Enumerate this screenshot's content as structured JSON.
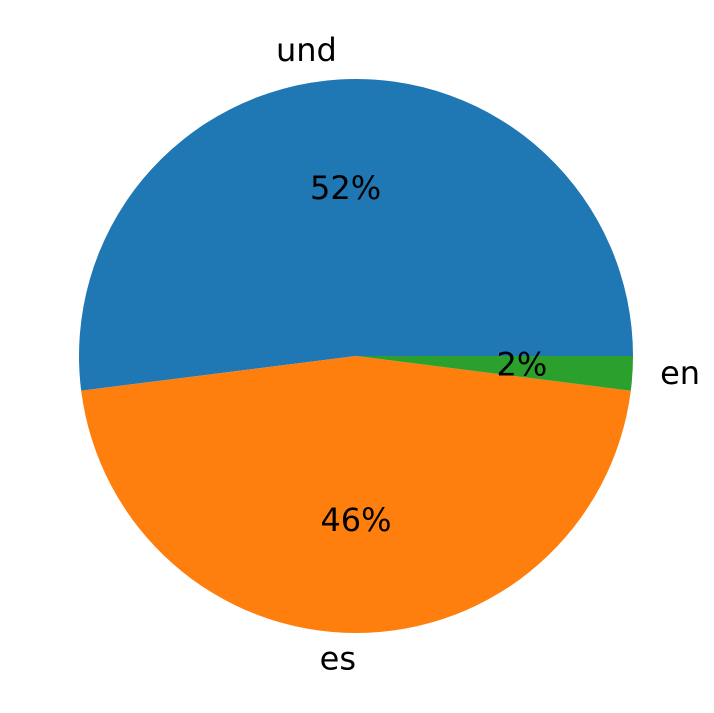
{
  "chart_data": {
    "type": "pie",
    "categories": [
      "und",
      "es",
      "en"
    ],
    "values": [
      52,
      46,
      2
    ],
    "value_labels": [
      "52%",
      "46%",
      "2%"
    ],
    "colors": [
      "#1f77b4",
      "#ff7f0e",
      "#2ca02c"
    ]
  }
}
